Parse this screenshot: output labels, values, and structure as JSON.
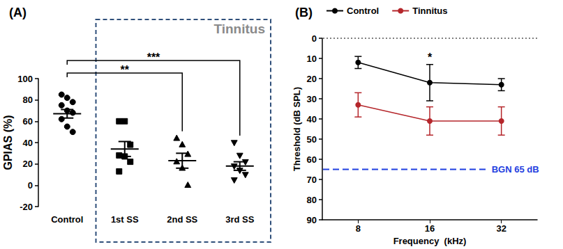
{
  "chart_data": [
    {
      "type": "scatter",
      "title": "(A)",
      "box_label": "Tinnitus",
      "ylabel": "GPIAS (%)",
      "categories": [
        "Control",
        "1st SS",
        "2nd SS",
        "3rd SS"
      ],
      "groups": [
        {
          "marker": "circle",
          "values": [
            85,
            82,
            78,
            75,
            70,
            68,
            62,
            55,
            50
          ],
          "mean": 67,
          "sem": 4
        },
        {
          "marker": "square",
          "values": [
            60,
            60,
            38,
            28,
            27,
            22,
            13
          ],
          "mean": 34,
          "sem": 7
        },
        {
          "marker": "triangle",
          "values": [
            44,
            38,
            29,
            22,
            16,
            0
          ],
          "mean": 23,
          "sem": 7
        },
        {
          "marker": "triangle-down",
          "values": [
            40,
            28,
            22,
            18,
            14,
            10,
            5
          ],
          "mean": 18,
          "sem": 4
        }
      ],
      "color": "#000000",
      "ylim": [
        -20,
        100
      ],
      "yticks": [
        -20,
        0,
        20,
        40,
        60,
        80,
        100
      ],
      "grid": false,
      "significance": [
        {
          "from": "Control",
          "to": "2nd SS",
          "label": "**"
        },
        {
          "from": "Control",
          "to": "3rd SS",
          "label": "***"
        }
      ]
    },
    {
      "type": "line",
      "title": "(B)",
      "xlabel": "Frequency  (kHz)",
      "ylabel": "Threshold (dB SPL)",
      "categories": [
        "8",
        "16",
        "32"
      ],
      "series": [
        {
          "name": "Control",
          "color": "#000000",
          "values": [
            12,
            22,
            23
          ],
          "errors": [
            3,
            9,
            3
          ]
        },
        {
          "name": "Tinnitus",
          "color": "#b5262b",
          "values": [
            33,
            41,
            41
          ],
          "errors": [
            6,
            7,
            7
          ]
        }
      ],
      "marker": "circle",
      "legend": "upper left",
      "grid": false,
      "ylim": [
        90,
        0
      ],
      "yticks": [
        0,
        10,
        20,
        30,
        40,
        50,
        60,
        70,
        80,
        90
      ],
      "annotations": [
        {
          "text": "*",
          "category": "16"
        }
      ],
      "reference_lines": [
        {
          "value": 65,
          "label": "BGN 65 dB",
          "color": "#1f3fe0",
          "line_style": "dashed"
        },
        {
          "value": 0,
          "color": "#000000",
          "line_style": "dotted"
        }
      ]
    }
  ]
}
